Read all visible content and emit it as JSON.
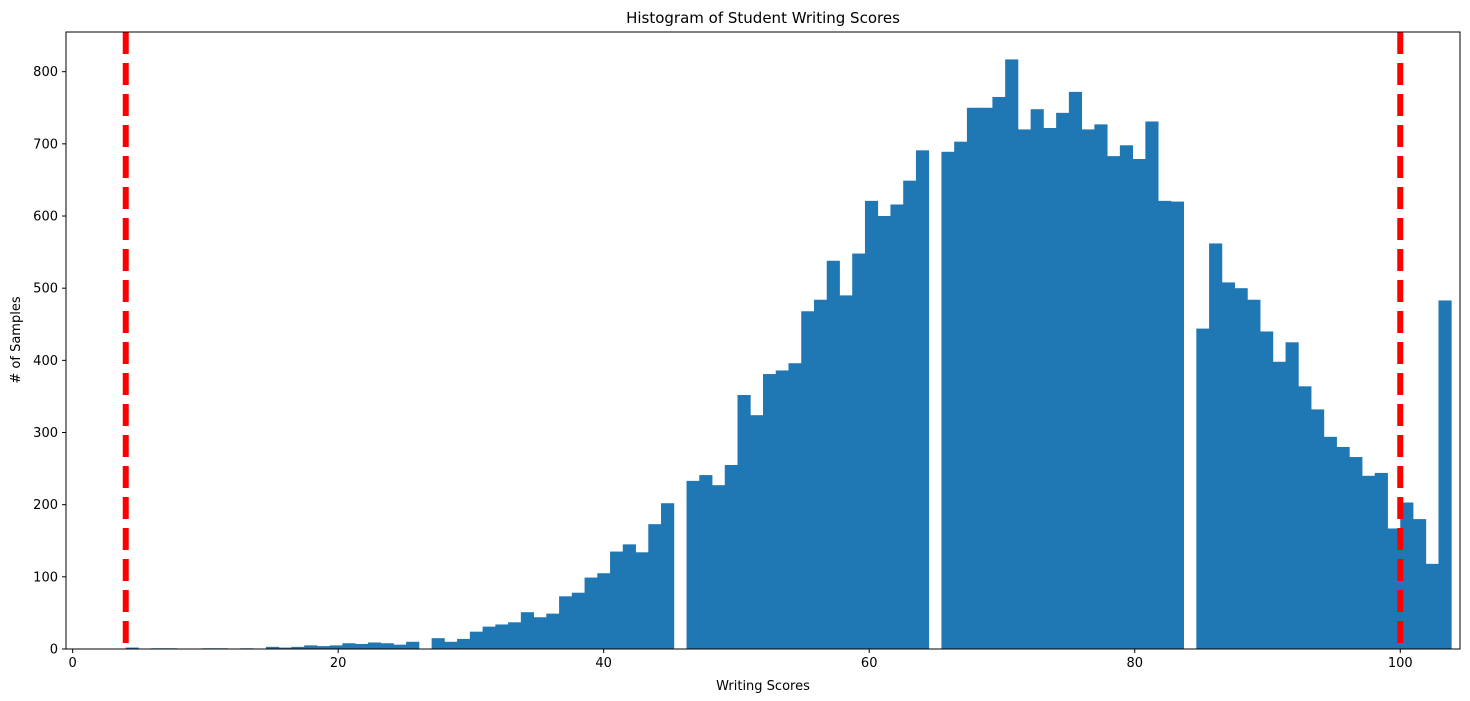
{
  "chart_data": {
    "type": "bar",
    "title": "Histogram of Student Writing Scores",
    "xlabel": "Writing Scores",
    "ylabel": "# of Samples",
    "xlim": [
      -0.5,
      104.5
    ],
    "ylim": [
      0,
      855
    ],
    "xticks": [
      0,
      20,
      40,
      60,
      80,
      100
    ],
    "yticks": [
      0,
      100,
      200,
      300,
      400,
      500,
      600,
      700,
      800
    ],
    "grid": false,
    "bar_color": "#1f77b4",
    "bin_start": 4,
    "bin_width": 0.96,
    "counts": [
      2,
      0,
      1,
      1,
      0,
      0,
      1,
      1,
      0,
      1,
      0,
      3,
      2,
      3,
      5,
      4,
      5,
      8,
      7,
      9,
      8,
      6,
      10,
      0,
      15,
      10,
      14,
      24,
      31,
      34,
      37,
      51,
      44,
      49,
      73,
      78,
      99,
      105,
      135,
      145,
      134,
      173,
      202,
      0,
      233,
      241,
      227,
      255,
      352,
      324,
      381,
      386,
      396,
      468,
      484,
      538,
      490,
      548,
      621,
      600,
      616,
      649,
      691,
      0,
      689,
      703,
      750,
      750,
      765,
      817,
      720,
      748,
      722,
      743,
      772,
      720,
      727,
      683,
      698,
      679,
      731,
      621,
      620,
      0,
      444,
      562,
      508,
      500,
      484,
      440,
      398,
      425,
      364,
      332,
      294,
      280,
      266,
      240,
      244,
      167,
      203,
      180,
      118,
      483
    ],
    "reference_lines": {
      "x_values": [
        4,
        100
      ],
      "color": "#ff0000",
      "style": "dashed"
    }
  }
}
